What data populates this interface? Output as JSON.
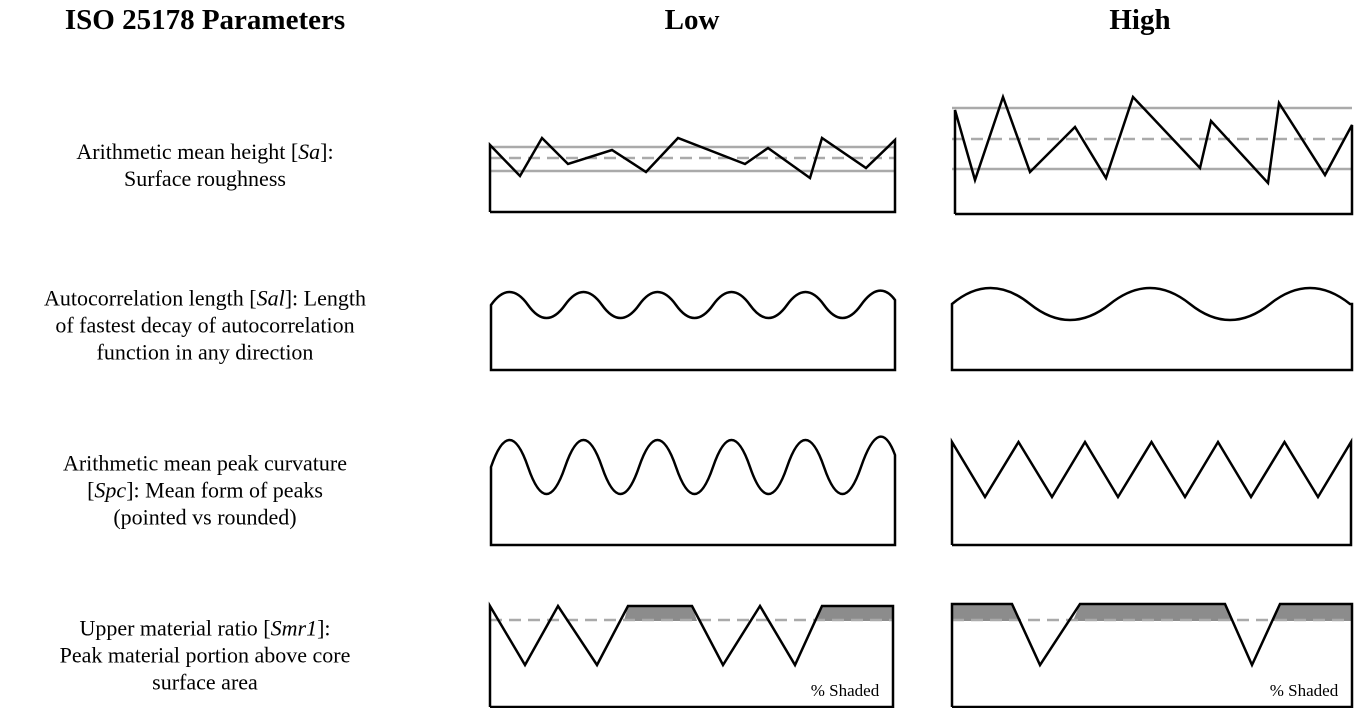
{
  "header": {
    "parameter_column": "ISO 25178 Parameters",
    "low_column": "Low",
    "high_column": "High"
  },
  "rows": [
    {
      "lines": [
        [
          {
            "text": "Arithmetic mean height ["
          },
          {
            "text": "Sa",
            "italic": true
          },
          {
            "text": "]:"
          }
        ],
        [
          {
            "text": "Surface roughness"
          }
        ]
      ]
    },
    {
      "lines": [
        [
          {
            "text": "Autocorrelation length ["
          },
          {
            "text": "Sal",
            "italic": true
          },
          {
            "text": "]: Length"
          }
        ],
        [
          {
            "text": "of fastest decay of autocorrelation"
          }
        ],
        [
          {
            "text": "function in any direction"
          }
        ]
      ]
    },
    {
      "lines": [
        [
          {
            "text": "Arithmetic mean peak curvature"
          }
        ],
        [
          {
            "text": "["
          },
          {
            "text": "Spc",
            "italic": true
          },
          {
            "text": "]: Mean form of peaks"
          }
        ],
        [
          {
            "text": "(pointed vs rounded)"
          }
        ]
      ]
    },
    {
      "lines": [
        [
          {
            "text": "Upper material ratio ["
          },
          {
            "text": "Smr1",
            "italic": true
          },
          {
            "text": "]:"
          }
        ],
        [
          {
            "text": "Peak material portion above core"
          }
        ],
        [
          {
            "text": "surface area"
          }
        ]
      ],
      "low_note": "% Shaded",
      "high_note": "% Shaded"
    }
  ]
}
